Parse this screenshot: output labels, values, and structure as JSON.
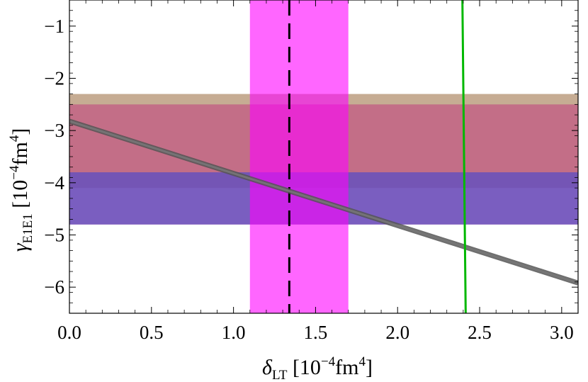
{
  "chart_data": {
    "type": "line",
    "xlim": [
      0.0,
      3.1
    ],
    "ylim": [
      -6.5,
      -0.5
    ],
    "x_ticks": [
      0.0,
      0.5,
      1.0,
      1.5,
      2.0,
      2.5,
      3.0
    ],
    "x_tick_labels": [
      "0.0",
      "0.5",
      "1.0",
      "1.5",
      "2.0",
      "2.5",
      "3.0"
    ],
    "y_ticks": [
      -1,
      -2,
      -3,
      -4,
      -5,
      -6
    ],
    "y_tick_labels": [
      "−1",
      "−2",
      "−3",
      "−4",
      "−5",
      "−6"
    ],
    "xlabel": {
      "symbol": "δ",
      "subscript": "LT",
      "units_open": "[10",
      "units_exp": "−4",
      "units_mid": "fm",
      "units_exp2": "4",
      "units_close": "]"
    },
    "ylabel": {
      "symbol": "γ",
      "subscript": "E1E1",
      "units_open": "[10",
      "units_exp": "−4",
      "units_mid": "fm",
      "units_exp2": "4",
      "units_close": "]"
    },
    "horizontal_bands": [
      {
        "y_from": -2.3,
        "y_to": -4.1,
        "color": "#b08c6a",
        "opacity": 0.72
      },
      {
        "y_from": -2.5,
        "y_to": -4.8,
        "color": "#c2457e",
        "opacity": 0.6
      },
      {
        "y_from": -3.8,
        "y_to": -4.8,
        "color": "#5a4ec4",
        "opacity": 0.75
      }
    ],
    "vertical_band": {
      "x_from": 1.1,
      "x_to": 1.7,
      "color": "#ff00ff",
      "opacity": 0.6
    },
    "dashed_line": {
      "x": 1.34,
      "color": "#000000"
    },
    "series": [
      {
        "kind": "gray-line",
        "x": [
          0.0,
          3.1
        ],
        "y": [
          -2.82,
          -5.92
        ],
        "color": "#555555"
      },
      {
        "kind": "green-line",
        "x": [
          2.395,
          2.415
        ],
        "y": [
          -0.5,
          -6.5
        ],
        "color": "#00b800"
      }
    ],
    "grid": false,
    "legend": "none"
  }
}
